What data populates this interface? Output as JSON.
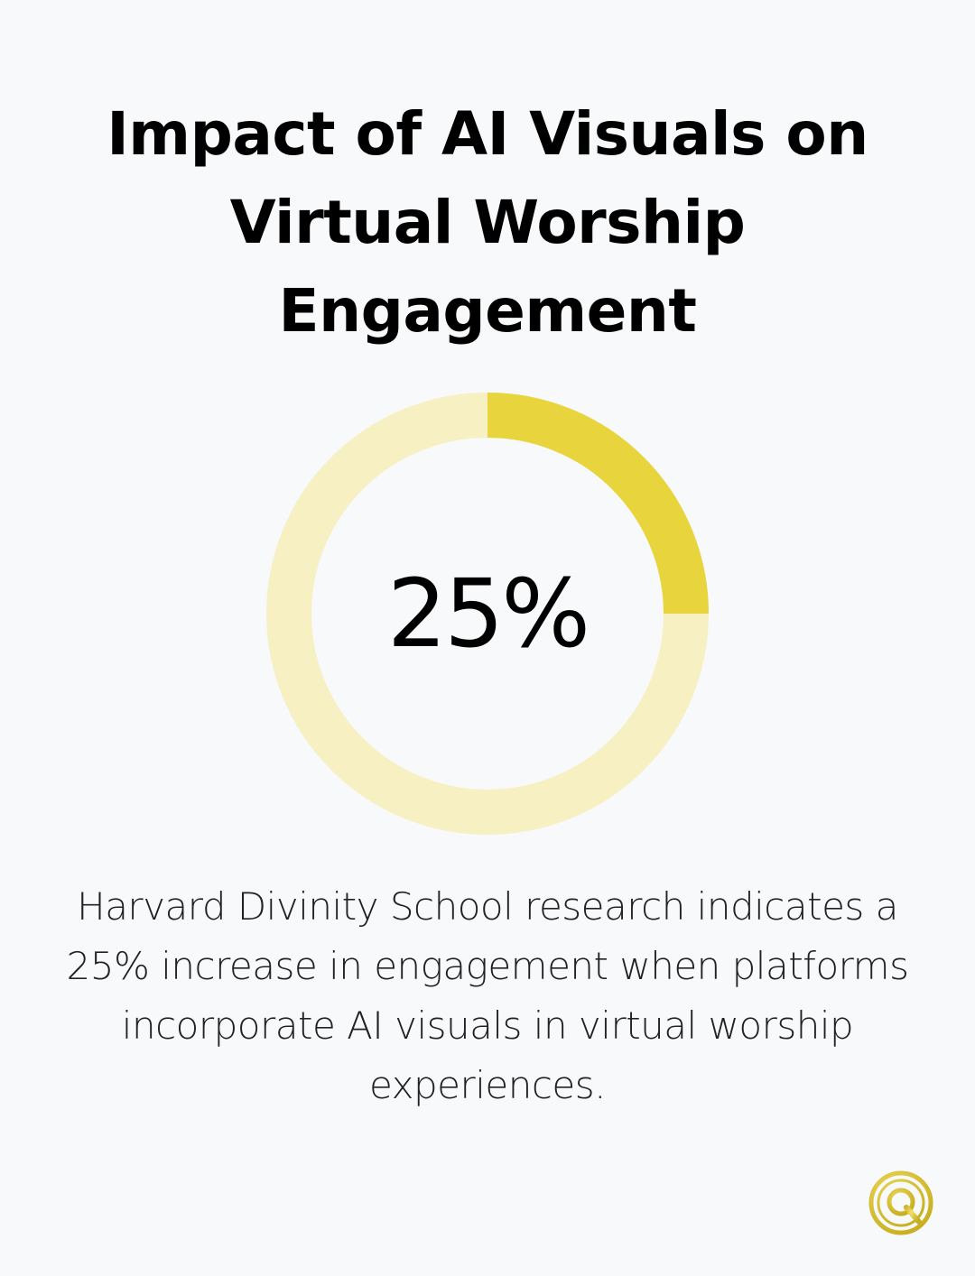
{
  "chart_data": {
    "type": "pie",
    "style": "donut",
    "title": "Impact of AI Visuals on Virtual Worship Engagement",
    "center_label": "25%",
    "value": 25,
    "max": 100,
    "colors": {
      "filled": "#e8d43c",
      "track": "#f7f0c2"
    }
  },
  "description": "Harvard Divinity School research indicates a 25% increase in engagement when platforms incorporate AI visuals in virtual worship experiences.",
  "logo": {
    "icon": "q-logo-icon",
    "color": "#e2cc3a"
  },
  "background": "#f7f9fa"
}
